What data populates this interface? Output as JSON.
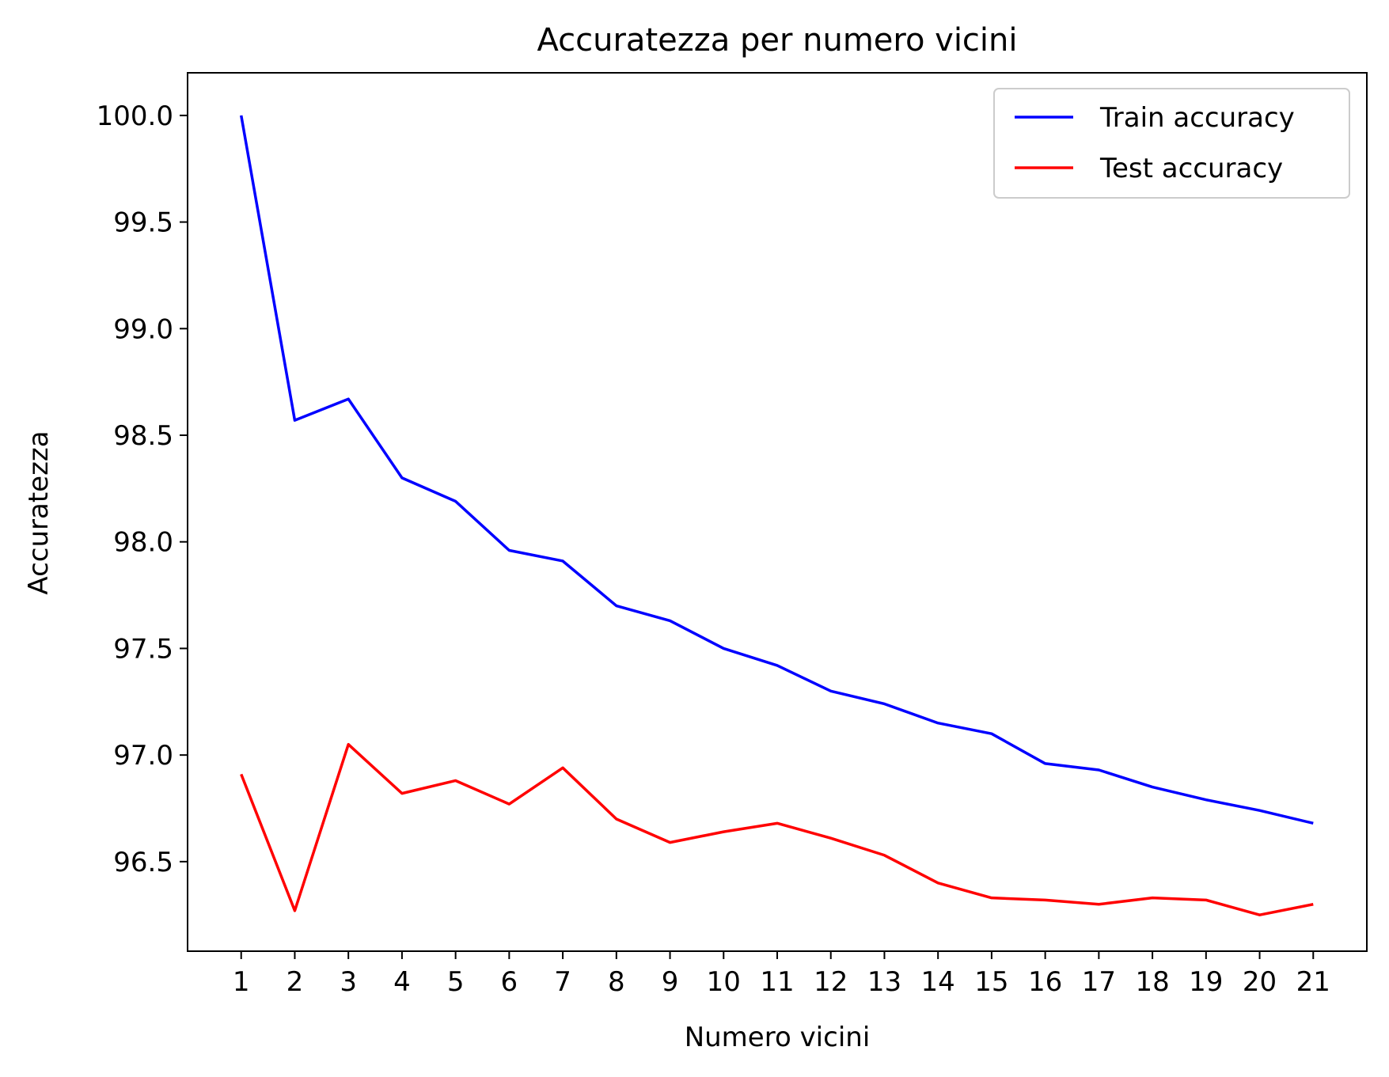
{
  "chart_data": {
    "type": "line",
    "title": "Accuratezza per numero vicini",
    "xlabel": "Numero vicini",
    "ylabel": "Accuratezza",
    "x": [
      1,
      2,
      3,
      4,
      5,
      6,
      7,
      8,
      9,
      10,
      11,
      12,
      13,
      14,
      15,
      16,
      17,
      18,
      19,
      20,
      21
    ],
    "x_tick_labels": [
      "1",
      "2",
      "3",
      "4",
      "5",
      "6",
      "7",
      "8",
      "9",
      "10",
      "11",
      "12",
      "13",
      "14",
      "15",
      "16",
      "17",
      "18",
      "19",
      "20",
      "21"
    ],
    "y_ticks": [
      96.5,
      97.0,
      97.5,
      98.0,
      98.5,
      99.0,
      99.5,
      100.0
    ],
    "y_tick_labels": [
      "96.5",
      "97.0",
      "97.5",
      "98.0",
      "98.5",
      "99.0",
      "99.5",
      "100.0"
    ],
    "xlim": [
      0,
      22
    ],
    "ylim": [
      96.08,
      100.2
    ],
    "grid": false,
    "legend_position": "top-right",
    "series": [
      {
        "name": "Train accuracy",
        "color": "#0000ff",
        "values": [
          100.0,
          98.57,
          98.67,
          98.3,
          98.19,
          97.96,
          97.91,
          97.7,
          97.63,
          97.5,
          97.42,
          97.3,
          97.24,
          97.15,
          97.1,
          96.96,
          96.93,
          96.85,
          96.79,
          96.74,
          96.68
        ]
      },
      {
        "name": "Test accuracy",
        "color": "#ff0000",
        "values": [
          96.91,
          96.27,
          97.05,
          96.82,
          96.88,
          96.77,
          96.94,
          96.7,
          96.59,
          96.64,
          96.68,
          96.61,
          96.53,
          96.4,
          96.33,
          96.32,
          96.3,
          96.33,
          96.32,
          96.25,
          96.3
        ]
      }
    ]
  }
}
